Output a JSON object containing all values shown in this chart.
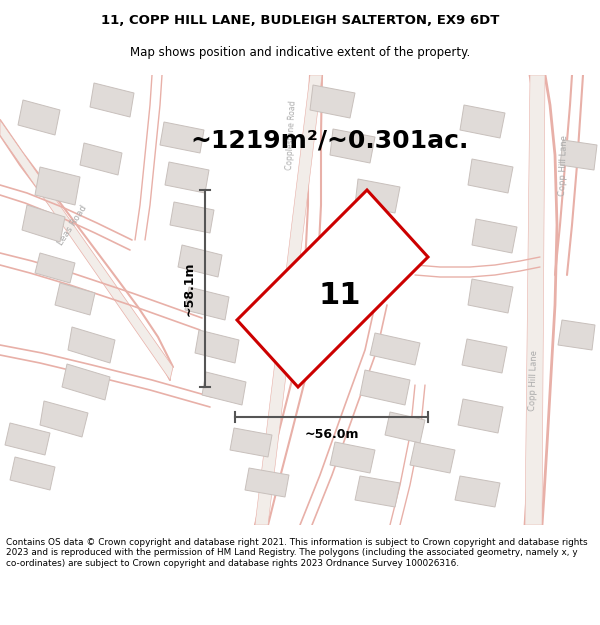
{
  "title_line1": "11, COPP HILL LANE, BUDLEIGH SALTERTON, EX9 6DT",
  "title_line2": "Map shows position and indicative extent of the property.",
  "area_text": "~1219m²/~0.301ac.",
  "plot_number": "11",
  "width_label": "~56.0m",
  "height_label": "~58.1m",
  "footer_text": "Contains OS data © Crown copyright and database right 2021. This information is subject to Crown copyright and database rights 2023 and is reproduced with the permission of HM Land Registry. The polygons (including the associated geometry, namely x, y co-ordinates) are subject to Crown copyright and database rights 2023 Ordnance Survey 100026316.",
  "map_bg": "#f7f4f2",
  "road_color": "#e8b0a8",
  "road_fill": "#f2ede9",
  "building_color": "#e0dbd8",
  "building_edge": "#c8c0bc",
  "plot_color": "#cc0000",
  "dim_color": "#555555",
  "street_label_color": "#aaaaaa",
  "title_fontsize": 9.5,
  "subtitle_fontsize": 8.5,
  "area_fontsize": 18,
  "plot_num_fontsize": 22,
  "dim_fontsize": 9
}
